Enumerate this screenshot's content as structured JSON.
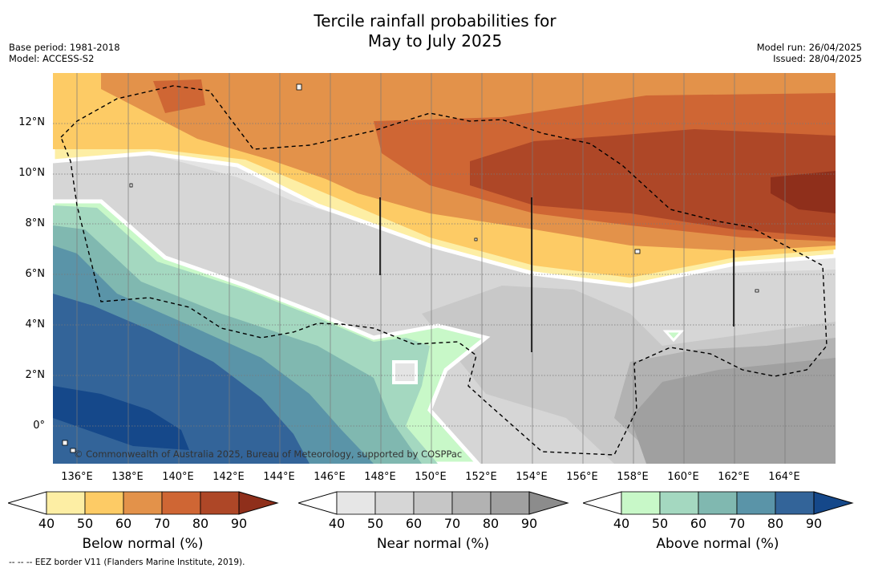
{
  "title_line1": "Tercile rainfall probabilities for",
  "title_line2": "May to July 2025",
  "base_period": "Base period: 1981-2018",
  "model": "Model: ACCESS-S2",
  "model_run": "Model run: 26/04/2025",
  "issued": "Issued: 28/04/2025",
  "lat_labels": [
    "12°N",
    "10°N",
    "8°N",
    "6°N",
    "4°N",
    "2°N",
    "0°"
  ],
  "lon_labels": [
    "136°E",
    "138°E",
    "140°E",
    "142°E",
    "144°E",
    "146°E",
    "148°E",
    "150°E",
    "152°E",
    "154°E",
    "156°E",
    "158°E",
    "160°E",
    "162°E",
    "164°E"
  ],
  "copyright": "© Commonwealth of Australia 2025, Bureau of Meteorology, supported by COSPPac",
  "legends": [
    {
      "name": "Below normal (%)",
      "ticks": [
        "40",
        "50",
        "60",
        "70",
        "80",
        "90"
      ],
      "colors": [
        "#fdeea4",
        "#fdcb65",
        "#e3924a",
        "#cf6634",
        "#ae4727",
        "#8f2f1b"
      ]
    },
    {
      "name": "Near normal (%)",
      "ticks": [
        "40",
        "50",
        "60",
        "70",
        "80",
        "90"
      ],
      "colors": [
        "#e6e6e6",
        "#d6d6d6",
        "#c6c6c6",
        "#b2b2b2",
        "#a0a0a0",
        "#8c8c8c"
      ]
    },
    {
      "name": "Above normal (%)",
      "ticks": [
        "40",
        "50",
        "60",
        "70",
        "80",
        "90"
      ],
      "colors": [
        "#c8f8c8",
        "#a4d8c0",
        "#80b8b0",
        "#5a94a8",
        "#336499",
        "#15488a"
      ]
    }
  ],
  "footnote": "-- -- -- EEZ border V11 (Flanders Marine Institute, 2019)."
}
